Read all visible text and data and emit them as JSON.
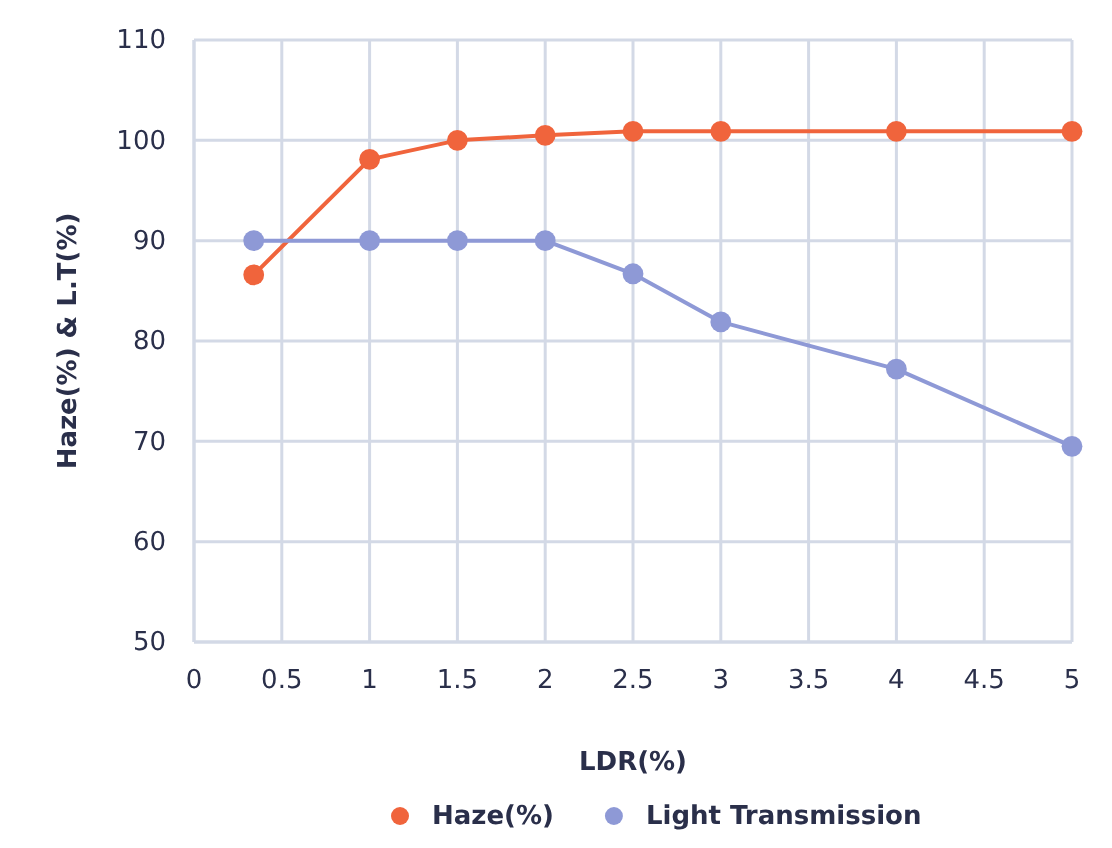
{
  "chart_data": {
    "type": "line",
    "xlabel": "LDR(%)",
    "ylabel": "Haze(%) & L.T(%)",
    "xlim": [
      0,
      5
    ],
    "xticks": [
      0,
      0.5,
      1,
      1.5,
      2,
      2.5,
      3,
      3.5,
      4,
      4.5,
      5
    ],
    "ylim": [
      50,
      110
    ],
    "yticks": [
      50,
      60,
      70,
      80,
      90,
      100,
      110
    ],
    "grid": true,
    "legend": "bottom",
    "marker": "circle",
    "line_style": "solid",
    "series": [
      {
        "name": "Haze(%)",
        "color": "#f0643c",
        "x": [
          0.34,
          1,
          1.5,
          2,
          2.5,
          3,
          4,
          5
        ],
        "values": [
          86.6,
          98.1,
          100,
          100.5,
          100.9,
          100.9,
          100.9,
          100.9
        ]
      },
      {
        "name": "Light Transmission",
        "color": "#8e99d6",
        "x": [
          0.34,
          1,
          1.5,
          2,
          2.5,
          3,
          4,
          5
        ],
        "values": [
          90,
          90,
          90,
          90,
          86.7,
          81.9,
          77.2,
          69.5
        ]
      }
    ]
  }
}
